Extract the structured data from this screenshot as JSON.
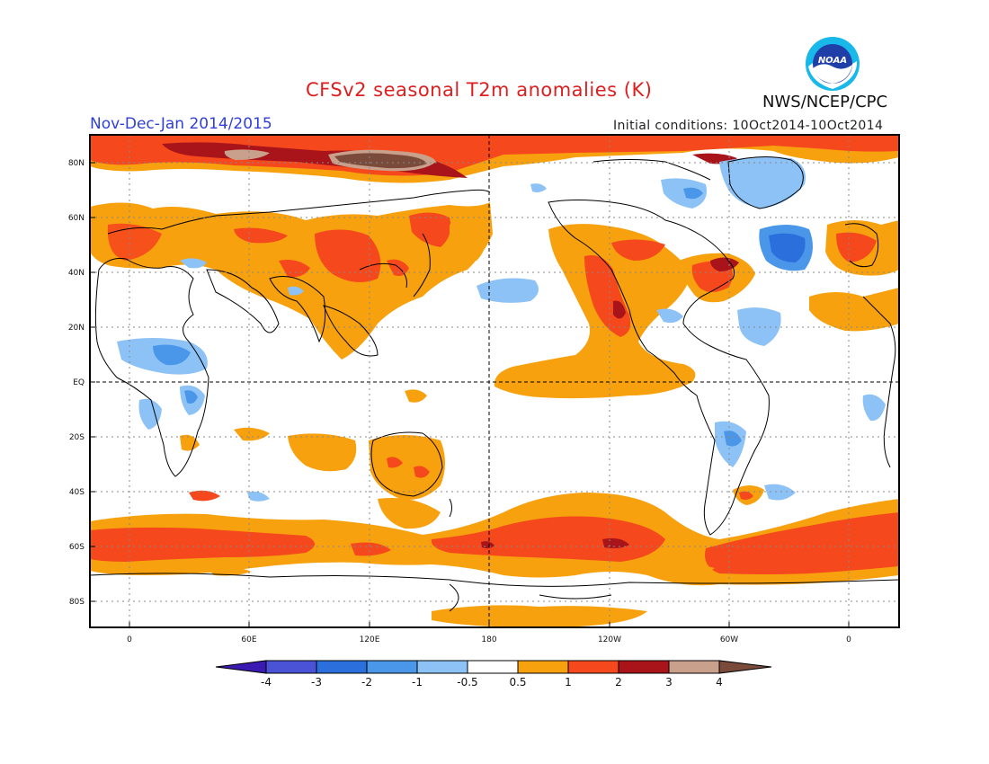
{
  "header": {
    "title": "CFSv2 seasonal T2m anomalies (K)",
    "period": "Nov-Dec-Jan 2014/2015",
    "agency": "NWS/NCEP/CPC",
    "initial_conditions": "Initial conditions: 10Oct2014-10Oct2014",
    "logo_text": "NOAA"
  },
  "map": {
    "lat_labels": [
      "80N",
      "60N",
      "40N",
      "20N",
      "EQ",
      "20S",
      "40S",
      "60S",
      "80S"
    ],
    "lon_labels": [
      "0",
      "60E",
      "120E",
      "180",
      "120W",
      "60W",
      "0"
    ]
  },
  "colorbar": {
    "labels": [
      "-4",
      "-3",
      "-2",
      "-1",
      "-0.5",
      "0.5",
      "1",
      "2",
      "3",
      "4"
    ],
    "colors": [
      "#3a1ab0",
      "#4a52d6",
      "#2a6fdc",
      "#4a97ea",
      "#8dc2f6",
      "#ffffff",
      "#f7a10e",
      "#f5481c",
      "#a8141a",
      "#c9a08c",
      "#7a4a3a"
    ]
  },
  "palette": {
    "title_red": "#dd1f1f",
    "period_blue": "#2f3fd8",
    "orange": "#f7a10e",
    "red": "#f5481c",
    "dark_red": "#a8141a",
    "tan": "#c9a08c",
    "brown": "#7a4a3a",
    "light_blue": "#8dc2f6",
    "blue": "#4a97ea"
  }
}
